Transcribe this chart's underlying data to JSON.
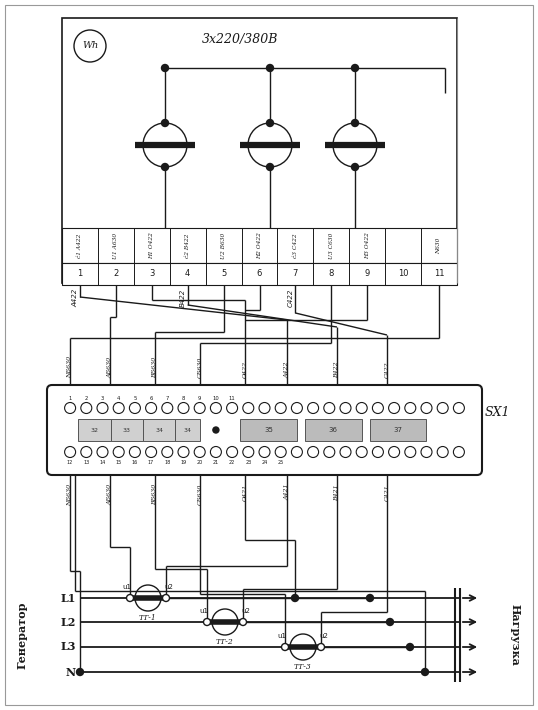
{
  "bg_color": "#ffffff",
  "line_color": "#1a1a1a",
  "title_text": "3x220/380B",
  "wh_label": "Wh",
  "sx1_label": "SX1",
  "generator_label": "Генератор",
  "load_label": "Нагрузка",
  "meter_term_labels": [
    "ć1 A422",
    "U1 A630",
    "H1 O422",
    "ć2 B422",
    "U2 B630",
    "H2 O422",
    "ć3 C422",
    "U3 C630",
    "H3 O422",
    "",
    "N630"
  ],
  "terminal_numbers": [
    "1",
    "2",
    "3",
    "4",
    "5",
    "6",
    "7",
    "8",
    "9",
    "10",
    "11"
  ],
  "line_labels": [
    "L1",
    "L2",
    "L3",
    "N"
  ],
  "ct_labels": [
    "ТТ-1",
    "ТТ-2",
    "ТТ-3"
  ],
  "labels_above_sx1": [
    "N630",
    "A630",
    "B630",
    "C630",
    "O422",
    "A422",
    "B422",
    "C422"
  ],
  "labels_below_sx1": [
    "N630",
    "A630",
    "B630",
    "C630",
    "O421",
    "A421",
    "B421",
    "C421"
  ],
  "sx1_top_nums": [
    "1",
    "2",
    "3",
    "4",
    "5",
    "6",
    "7",
    "8",
    "9",
    "10",
    "11"
  ],
  "sx1_bot_nums": [
    "12",
    "13",
    "14",
    "15",
    "16",
    "17",
    "18",
    "19",
    "20",
    "21",
    "22",
    "23",
    "24",
    "25"
  ],
  "wire_labels_cross": [
    "A422",
    "B422",
    "C422"
  ],
  "block_nums": [
    "32",
    "33",
    "34",
    "35",
    "36",
    "37"
  ]
}
